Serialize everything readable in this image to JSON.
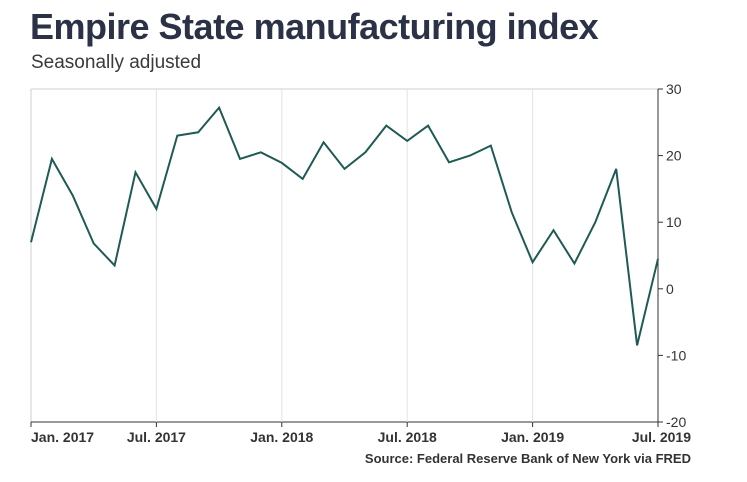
{
  "chart_data": {
    "type": "line",
    "title": "Empire State manufacturing index",
    "subtitle": "Seasonally adjusted",
    "source": "Source: Federal Reserve Bank of New York via FRED",
    "xlabel": "",
    "ylabel": "",
    "ylim": [
      -20,
      30
    ],
    "y_ticks": [
      30,
      20,
      10,
      0,
      -10,
      -20
    ],
    "x_range": [
      "2017-01",
      "2019-07"
    ],
    "x_ticks": [
      {
        "label": "Jan. 2017",
        "x": "2017-01"
      },
      {
        "label": "Jul. 2017",
        "x": "2017-07"
      },
      {
        "label": "Jan. 2018",
        "x": "2018-01"
      },
      {
        "label": "Jul. 2018",
        "x": "2018-07"
      },
      {
        "label": "Jan. 2019",
        "x": "2019-01"
      },
      {
        "label": "Jul. 2019",
        "x": "2019-07"
      }
    ],
    "grid": "vertical",
    "y_axis_position": "right",
    "line_color": "#1f5a55",
    "series": [
      {
        "points": [
          {
            "x": "2017-01",
            "y": 7.0
          },
          {
            "x": "2017-02",
            "y": 19.5
          },
          {
            "x": "2017-03",
            "y": 14.0
          },
          {
            "x": "2017-04",
            "y": 6.8
          },
          {
            "x": "2017-05",
            "y": 3.5
          },
          {
            "x": "2017-06",
            "y": 17.5
          },
          {
            "x": "2017-07",
            "y": 12.0
          },
          {
            "x": "2017-08",
            "y": 23.0
          },
          {
            "x": "2017-09",
            "y": 23.5
          },
          {
            "x": "2017-10",
            "y": 27.2
          },
          {
            "x": "2017-11",
            "y": 19.5
          },
          {
            "x": "2017-12",
            "y": 20.5
          },
          {
            "x": "2018-01",
            "y": 18.9
          },
          {
            "x": "2018-02",
            "y": 16.5
          },
          {
            "x": "2018-03",
            "y": 22.0
          },
          {
            "x": "2018-04",
            "y": 18.0
          },
          {
            "x": "2018-05",
            "y": 20.5
          },
          {
            "x": "2018-06",
            "y": 24.5
          },
          {
            "x": "2018-07",
            "y": 22.2
          },
          {
            "x": "2018-08",
            "y": 24.5
          },
          {
            "x": "2018-09",
            "y": 19.0
          },
          {
            "x": "2018-10",
            "y": 20.0
          },
          {
            "x": "2018-11",
            "y": 21.5
          },
          {
            "x": "2018-12",
            "y": 11.5
          },
          {
            "x": "2019-01",
            "y": 4.0
          },
          {
            "x": "2019-02",
            "y": 8.8
          },
          {
            "x": "2019-03",
            "y": 3.8
          },
          {
            "x": "2019-04",
            "y": 10.0
          },
          {
            "x": "2019-05",
            "y": 18.0
          },
          {
            "x": "2019-06",
            "y": -8.5
          },
          {
            "x": "2019-07",
            "y": 4.5
          }
        ]
      }
    ]
  }
}
